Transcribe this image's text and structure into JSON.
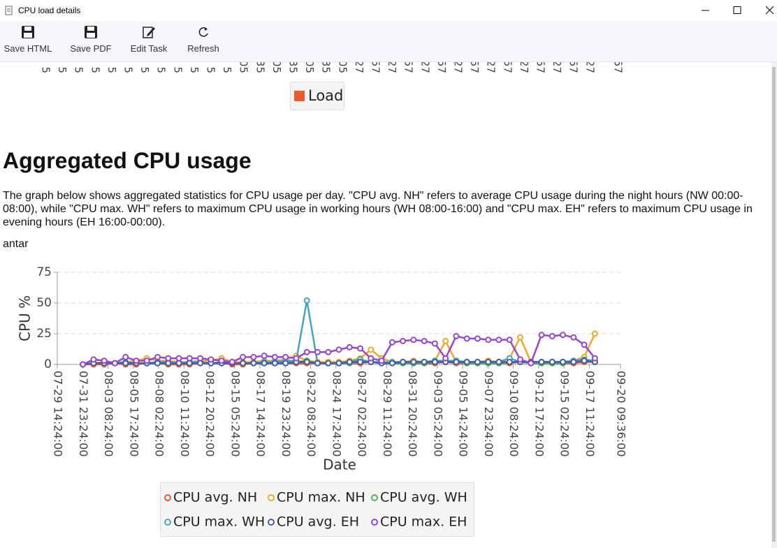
{
  "window": {
    "title": "CPU load details"
  },
  "toolbar": [
    "Save HTML",
    "Save PDF",
    "Edit Task",
    "Refresh"
  ],
  "top_chart": {
    "tick_fragments": [
      "5",
      "5",
      "5",
      "5",
      "5",
      "5",
      "5",
      "5",
      "5",
      "5",
      "5",
      "5",
      "05",
      "35",
      "05",
      "35",
      "05",
      "35",
      "05",
      "27",
      "57",
      "27",
      "57",
      "27",
      "57",
      "27",
      "57",
      "27",
      "57",
      "27",
      "57",
      "27",
      "57",
      "27",
      "57"
    ],
    "legend": {
      "name": "Load",
      "color": "#f05a28"
    }
  },
  "section": {
    "heading": "Aggregated CPU usage",
    "description": "The graph below shows aggregated statistics for CPU usage per day. \"CPU avg. NH\" refers to average CPU usage during the night hours (NW 00:00-08:00), while \"CPU max. WH\" refers to maximum CPU usage in working hours (WH 08:00-16:00) and \"CPU max. EH\" refers to maximum CPU usage in evening hours (EH 16:00-00:00).",
    "host": "antar"
  },
  "chart_data": {
    "type": "line",
    "xlabel": "Date",
    "ylabel": "CPU %",
    "x": [
      "08-01",
      "08-02",
      "08-03",
      "08-04",
      "08-05",
      "08-06",
      "08-07",
      "08-08",
      "08-09",
      "08-10",
      "08-11",
      "08-12",
      "08-13",
      "08-14",
      "08-15",
      "08-16",
      "08-17",
      "08-18",
      "08-19",
      "08-20",
      "08-21",
      "08-22",
      "08-23",
      "08-24",
      "08-25",
      "08-26",
      "08-27",
      "08-28",
      "08-29",
      "08-30",
      "08-31",
      "09-01",
      "09-02",
      "09-03",
      "09-04",
      "09-05",
      "09-06",
      "09-07",
      "09-08",
      "09-09",
      "09-10",
      "09-11",
      "09-12",
      "09-13",
      "09-14",
      "09-15",
      "09-16",
      "09-17",
      "09-18"
    ],
    "xlim": [
      "07-29 14:24:00",
      "09-20 09:36:00"
    ],
    "xticks": [
      "07-29 14:24:00",
      "07-31 23:24:00",
      "08-03 08:24:00",
      "08-05 17:24:00",
      "08-08 02:24:00",
      "08-10 11:24:00",
      "08-12 20:24:00",
      "08-15 05:24:00",
      "08-17 14:24:00",
      "08-19 23:24:00",
      "08-22 08:24:00",
      "08-24 17:24:00",
      "08-27 02:24:00",
      "08-29 11:24:00",
      "08-31 20:24:00",
      "09-03 05:24:00",
      "09-05 14:24:00",
      "09-07 23:24:00",
      "09-10 08:24:00",
      "09-12 17:24:00",
      "09-15 02:24:00",
      "09-17 11:24:00",
      "09-20 09:36:00"
    ],
    "ylim": [
      0,
      75
    ],
    "yticks": [
      0,
      25,
      50,
      75
    ],
    "grid": true,
    "legend": "bottom",
    "series": [
      {
        "name": "CPU avg. NH",
        "color": "#e8562a",
        "values": [
          0,
          0,
          0,
          1,
          0,
          0,
          1,
          1,
          0,
          0,
          0,
          1,
          1,
          1,
          0,
          0,
          1,
          1,
          1,
          1,
          1,
          1,
          1,
          1,
          1,
          1,
          1,
          2,
          1,
          1,
          1,
          1,
          1,
          1,
          2,
          1,
          1,
          1,
          1,
          1,
          1,
          2,
          1,
          1,
          1,
          1,
          1,
          2,
          2
        ]
      },
      {
        "name": "CPU max. NH",
        "color": "#f5a623",
        "values": [
          0,
          1,
          2,
          1,
          2,
          3,
          5,
          3,
          3,
          2,
          2,
          3,
          3,
          5,
          2,
          2,
          2,
          3,
          3,
          4,
          7,
          3,
          2,
          2,
          2,
          3,
          5,
          12,
          5,
          2,
          2,
          3,
          2,
          3,
          19,
          2,
          2,
          2,
          3,
          2,
          5,
          22,
          2,
          2,
          2,
          2,
          3,
          6,
          25
        ]
      },
      {
        "name": "CPU avg. WH",
        "color": "#4caf50",
        "values": [
          0,
          1,
          1,
          1,
          1,
          1,
          1,
          1,
          1,
          1,
          1,
          1,
          1,
          1,
          1,
          1,
          1,
          1,
          1,
          2,
          2,
          3,
          1,
          1,
          1,
          1,
          2,
          2,
          1,
          1,
          1,
          1,
          1,
          2,
          2,
          2,
          1,
          1,
          1,
          1,
          2,
          2,
          1,
          1,
          1,
          1,
          2,
          3,
          2
        ]
      },
      {
        "name": "CPU max. WH",
        "color": "#45a5c0",
        "values": [
          0,
          1,
          1,
          1,
          2,
          1,
          1,
          2,
          2,
          1,
          2,
          2,
          1,
          2,
          1,
          1,
          1,
          2,
          2,
          3,
          3,
          52,
          1,
          1,
          1,
          2,
          4,
          2,
          2,
          2,
          2,
          2,
          2,
          3,
          3,
          3,
          2,
          2,
          2,
          2,
          5,
          2,
          2,
          2,
          2,
          2,
          3,
          4,
          3
        ]
      },
      {
        "name": "CPU avg. EH",
        "color": "#3f5dab",
        "values": [
          0,
          1,
          1,
          1,
          1,
          1,
          1,
          1,
          1,
          1,
          1,
          1,
          1,
          1,
          1,
          1,
          1,
          1,
          1,
          1,
          2,
          2,
          1,
          1,
          1,
          2,
          2,
          2,
          1,
          1,
          2,
          2,
          2,
          2,
          2,
          2,
          2,
          2,
          2,
          2,
          2,
          2,
          2,
          2,
          2,
          2,
          2,
          3,
          2
        ]
      },
      {
        "name": "CPU max. EH",
        "color": "#9b44d0",
        "values": [
          0,
          4,
          3,
          1,
          6,
          3,
          3,
          6,
          5,
          5,
          5,
          5,
          4,
          3,
          2,
          6,
          6,
          7,
          6,
          6,
          5,
          10,
          10,
          10,
          12,
          14,
          13,
          5,
          3,
          18,
          19,
          20,
          19,
          17,
          5,
          23,
          21,
          21,
          20,
          20,
          20,
          4,
          1,
          24,
          23,
          24,
          22,
          16,
          5
        ]
      }
    ]
  }
}
